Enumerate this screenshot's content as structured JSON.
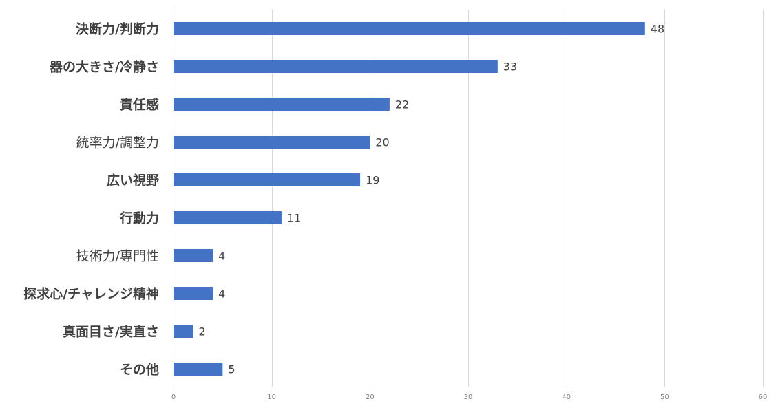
{
  "chart_data": {
    "type": "bar",
    "orientation": "horizontal",
    "title": "",
    "xlabel": "",
    "ylabel": "",
    "xlim": [
      0,
      60
    ],
    "ticks": [
      "0",
      "10",
      "20",
      "30",
      "40",
      "50",
      "60"
    ],
    "tick_values": [
      0,
      10,
      20,
      30,
      40,
      50,
      60
    ],
    "grid": "vertical",
    "bar_color": "#4472c4",
    "legend": "none",
    "categories": [
      "決断力/判断力",
      "器の大きさ/冷静さ",
      "責任感",
      "統率力/調整力",
      "広い視野",
      "行動力",
      "技術力/専門性",
      "探求心/チャレンジ精神",
      "真面目さ/実直さ",
      "その他"
    ],
    "bold_categories": [
      true,
      true,
      true,
      false,
      true,
      true,
      false,
      true,
      true,
      true
    ],
    "values": [
      48,
      33,
      22,
      20,
      19,
      11,
      4,
      4,
      2,
      5
    ],
    "value_labels": [
      "48",
      "33",
      "22",
      "20",
      "19",
      "11",
      "4",
      "4",
      "2",
      "5"
    ]
  }
}
